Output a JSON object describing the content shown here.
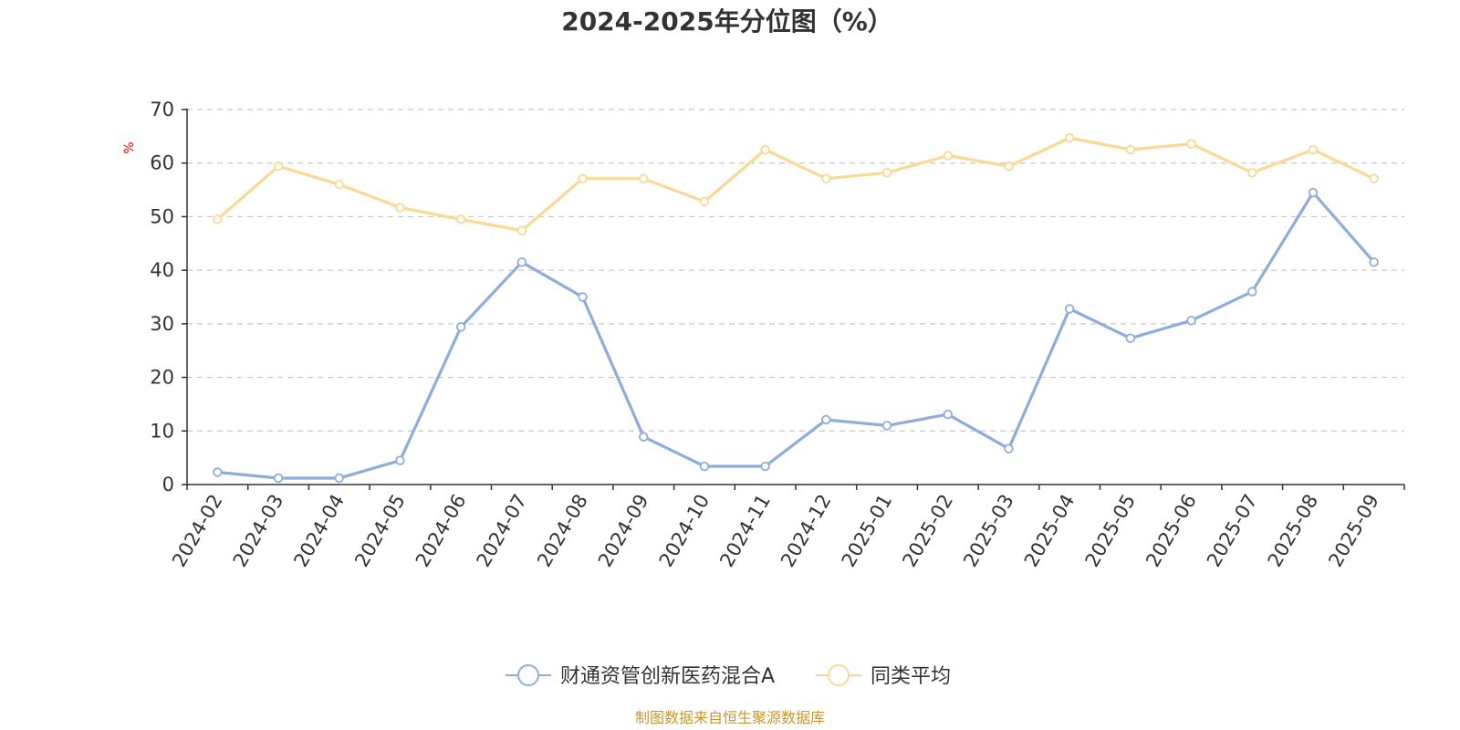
{
  "colors": {
    "fund": "#8eaddb",
    "avg": "#fad995",
    "unit": "#ff0000",
    "source": "#c9962b",
    "grid": "#c8c8c8",
    "axis": "#333333"
  },
  "footer": {
    "source": "制图数据来自恒生聚源数据库"
  },
  "chart_data": {
    "type": "line",
    "title": "2024-2025年分位图（%）",
    "ylabel": "%",
    "xlabel": "",
    "ylim": [
      0,
      70
    ],
    "yticks": [
      "0",
      "10",
      "20",
      "30",
      "40",
      "50",
      "60",
      "70"
    ],
    "grid": true,
    "legend_position": "bottom-center",
    "categories": [
      "2024-02",
      "2024-03",
      "2024-04",
      "2024-05",
      "2024-06",
      "2024-07",
      "2024-08",
      "2024-09",
      "2024-10",
      "2024-11",
      "2024-12",
      "2025-01",
      "2025-02",
      "2025-03",
      "2025-04",
      "2025-05",
      "2025-06",
      "2025-07",
      "2025-08",
      "2025-09"
    ],
    "series": [
      {
        "name": "财通资管创新医药混合A",
        "values": [
          2.3,
          1.2,
          1.2,
          4.5,
          29.4,
          41.5,
          35.0,
          8.9,
          3.4,
          3.4,
          12.1,
          11.0,
          13.1,
          6.7,
          32.8,
          27.3,
          30.6,
          36.0,
          54.5,
          41.5
        ]
      },
      {
        "name": "同类平均",
        "values": [
          49.5,
          59.4,
          56.0,
          51.7,
          49.5,
          47.4,
          57.1,
          57.1,
          52.8,
          62.5,
          57.1,
          58.2,
          61.4,
          59.4,
          64.7,
          62.5,
          63.6,
          58.2,
          62.5,
          57.1
        ]
      }
    ]
  }
}
